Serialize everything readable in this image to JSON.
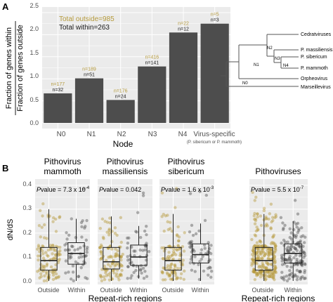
{
  "colors": {
    "bar": "#4d4d4d",
    "outside": "#b59a3c",
    "within": "#555555",
    "panel_bg": "#ebebeb",
    "grid": "#ffffff"
  },
  "panel_a": {
    "letter": "A",
    "chart_data": {
      "type": "bar",
      "categories": [
        "N0",
        "N1",
        "N2",
        "N3",
        "N4",
        "Virus-specific"
      ],
      "category_note": "(P. sibericum or P. mammoth)",
      "values": [
        0.67,
        1.01,
        0.52,
        1.28,
        2.05,
        2.25
      ],
      "ylabel_top": "Fraction of genes within",
      "ylabel_bottom": "Fraction of genes outside",
      "xlabel": "Node",
      "ylim": [
        0,
        2.5
      ],
      "yticks": [
        "0.0",
        "0.5",
        "1.0",
        "1.5",
        "2.0",
        "2.5"
      ],
      "n_outside": [
        "n=177",
        "n=189",
        "n=176",
        "n=416",
        "n=22",
        "n=5"
      ],
      "n_within": [
        "n=32",
        "n=51",
        "n=24",
        "n=141",
        "n=12",
        "n=3"
      ],
      "total_outside": "Total outside=985",
      "total_within": "Total within=263",
      "grid": true
    },
    "tree": {
      "leaves": [
        "Cedratviruses",
        "P. massiliensis",
        "P. sibericum",
        "P. mammoth",
        "Orpheovirus",
        "Marseillevirus"
      ],
      "nodes": [
        "N0",
        "N1",
        "N2",
        "N3",
        "N4"
      ]
    }
  },
  "panel_b": {
    "letter": "B",
    "ylabel": "dN/dS",
    "xlabel": "Repeat-rich regions",
    "categories": [
      "Outside",
      "Within"
    ],
    "yticks": [
      "0.0",
      "0.1",
      "0.2",
      "0.3",
      "0.4"
    ],
    "chart_data": {
      "type": "box",
      "ylim": [
        0,
        0.42
      ],
      "panels": [
        {
          "title_line1": "Pithovirus",
          "title_line2": "mammoth",
          "pvalue_prefix": "P",
          "pvalue_text": "value = 7.3 x 10",
          "pvalue_exp": "-4",
          "boxes": [
            {
              "name": "Outside",
              "min": 0.0,
              "q1": 0.045,
              "median": 0.085,
              "q3": 0.14,
              "max": 0.3
            },
            {
              "name": "Within",
              "min": 0.0,
              "q1": 0.07,
              "median": 0.115,
              "q3": 0.16,
              "max": 0.26
            }
          ]
        },
        {
          "title_line1": "Pithovirus",
          "title_line2": "massiliensis",
          "pvalue_prefix": "P",
          "pvalue_text": "value = 0.042",
          "pvalue_exp": "",
          "boxes": [
            {
              "name": "Outside",
              "min": 0.0,
              "q1": 0.05,
              "median": 0.08,
              "q3": 0.14,
              "max": 0.27
            },
            {
              "name": "Within",
              "min": 0.01,
              "q1": 0.065,
              "median": 0.1,
              "q3": 0.15,
              "max": 0.23
            }
          ]
        },
        {
          "title_line1": "Pithovirus",
          "title_line2": "sibericum",
          "pvalue_prefix": "P",
          "pvalue_text": "value = 1.6 x 10",
          "pvalue_exp": "-3",
          "boxes": [
            {
              "name": "Outside",
              "min": 0.0,
              "q1": 0.045,
              "median": 0.085,
              "q3": 0.14,
              "max": 0.28
            },
            {
              "name": "Within",
              "min": 0.0,
              "q1": 0.075,
              "median": 0.11,
              "q3": 0.155,
              "max": 0.24
            }
          ]
        },
        {
          "title_line1": "Pithoviruses",
          "title_line2": "",
          "pvalue_prefix": "P",
          "pvalue_text": "value = 5.5 x 10",
          "pvalue_exp": "-7",
          "boxes": [
            {
              "name": "Outside",
              "min": 0.0,
              "q1": 0.045,
              "median": 0.085,
              "q3": 0.14,
              "max": 0.28
            },
            {
              "name": "Within",
              "min": 0.0,
              "q1": 0.075,
              "median": 0.115,
              "q3": 0.155,
              "max": 0.25
            }
          ]
        }
      ]
    }
  }
}
